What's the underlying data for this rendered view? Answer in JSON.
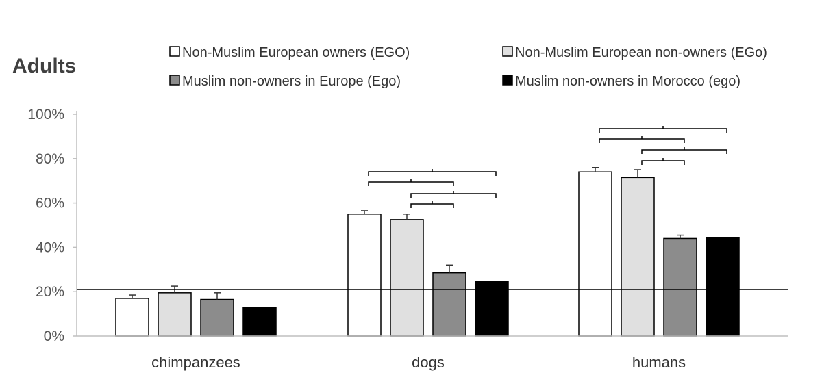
{
  "chart_data": {
    "type": "bar",
    "title": "Adults",
    "categories": [
      "chimpanzees",
      "dogs",
      "humans"
    ],
    "yticks": [
      "0%",
      "20%",
      "40%",
      "60%",
      "80%",
      "100%"
    ],
    "ylim": [
      0,
      100
    ],
    "reference_line": 21,
    "grid": false,
    "legend_position": "top",
    "series": [
      {
        "name": "Non-Muslim European owners (EGO)",
        "color": "#ffffff",
        "values": [
          17,
          55,
          74
        ],
        "errors": [
          1.5,
          1.5,
          2
        ]
      },
      {
        "name": "Non-Muslim European non-owners (EGo)",
        "color": "#e0e0e0",
        "values": [
          19.5,
          52.5,
          71.5
        ],
        "errors": [
          3,
          2.5,
          3.5
        ]
      },
      {
        "name": "Muslim non-owners in Europe (Ego)",
        "color": "#8c8c8c",
        "values": [
          16.5,
          28.5,
          44
        ],
        "errors": [
          3,
          3.5,
          1.5
        ]
      },
      {
        "name": "Muslim non-owners in Morocco (ego)",
        "color": "#000000",
        "values": [
          13,
          24.5,
          44.5
        ],
        "errors": [
          0,
          0,
          0
        ]
      }
    ],
    "significance_brackets": [
      {
        "category": "dogs",
        "from_series": 0,
        "to_series": 3,
        "level": 1
      },
      {
        "category": "dogs",
        "from_series": 0,
        "to_series": 2,
        "level": 2
      },
      {
        "category": "dogs",
        "from_series": 1,
        "to_series": 3,
        "level": 3
      },
      {
        "category": "dogs",
        "from_series": 1,
        "to_series": 2,
        "level": 4
      },
      {
        "category": "humans",
        "from_series": 0,
        "to_series": 3,
        "level": 1
      },
      {
        "category": "humans",
        "from_series": 0,
        "to_series": 2,
        "level": 2
      },
      {
        "category": "humans",
        "from_series": 1,
        "to_series": 3,
        "level": 3
      },
      {
        "category": "humans",
        "from_series": 1,
        "to_series": 2,
        "level": 4
      }
    ]
  }
}
